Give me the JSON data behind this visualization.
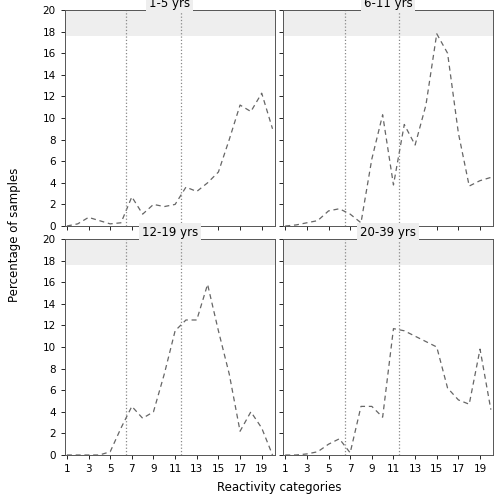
{
  "panels": [
    {
      "title": "1-5 yrs",
      "x": [
        1,
        2,
        3,
        4,
        5,
        6,
        7,
        8,
        9,
        10,
        11,
        12,
        13,
        14,
        15,
        16,
        17,
        18,
        19,
        20
      ],
      "y": [
        0.0,
        0.2,
        0.8,
        0.5,
        0.2,
        0.3,
        2.7,
        1.1,
        2.0,
        1.8,
        2.0,
        3.6,
        3.2,
        4.0,
        5.0,
        8.0,
        11.2,
        10.6,
        12.3,
        9.0
      ]
    },
    {
      "title": "6-11 yrs",
      "x": [
        1,
        2,
        3,
        4,
        5,
        6,
        7,
        8,
        9,
        10,
        11,
        12,
        13,
        14,
        15,
        16,
        17,
        18,
        19,
        20
      ],
      "y": [
        0.0,
        0.1,
        0.3,
        0.5,
        1.4,
        1.6,
        1.1,
        0.3,
        6.2,
        10.3,
        3.8,
        9.4,
        7.5,
        11.2,
        17.8,
        16.0,
        8.6,
        3.7,
        4.2,
        4.5
      ]
    },
    {
      "title": "12-19 yrs",
      "x": [
        1,
        2,
        3,
        4,
        5,
        6,
        7,
        8,
        9,
        10,
        11,
        12,
        13,
        14,
        15,
        16,
        17,
        18,
        19,
        20
      ],
      "y": [
        0.0,
        0.0,
        0.0,
        0.0,
        0.3,
        2.5,
        4.5,
        3.4,
        4.0,
        7.5,
        11.5,
        12.5,
        12.5,
        15.8,
        11.5,
        7.5,
        2.2,
        4.0,
        2.5,
        0.0
      ]
    },
    {
      "title": "20-39 yrs",
      "x": [
        1,
        2,
        3,
        4,
        5,
        6,
        7,
        8,
        9,
        10,
        11,
        12,
        13,
        14,
        15,
        16,
        17,
        18,
        19,
        20
      ],
      "y": [
        0.0,
        0.0,
        0.1,
        0.3,
        1.0,
        1.5,
        0.2,
        4.5,
        4.5,
        3.5,
        11.7,
        11.5,
        11.0,
        10.5,
        10.0,
        6.2,
        5.1,
        4.7,
        9.8,
        4.2
      ]
    }
  ],
  "vline1": 6.5,
  "vline2": 11.5,
  "yticks": [
    0,
    2,
    4,
    6,
    8,
    10,
    12,
    14,
    16,
    18,
    20
  ],
  "xticks": [
    1,
    3,
    5,
    7,
    9,
    11,
    13,
    15,
    17,
    19
  ],
  "xlabel": "Reactivity categories",
  "ylabel": "Percentage of samples",
  "ylim": [
    0,
    20
  ],
  "xlim": [
    1,
    20
  ],
  "line_color": "#666666",
  "vline_color": "#888888",
  "bg_color": "#ffffff",
  "title_bg_color": "#eeeeee"
}
